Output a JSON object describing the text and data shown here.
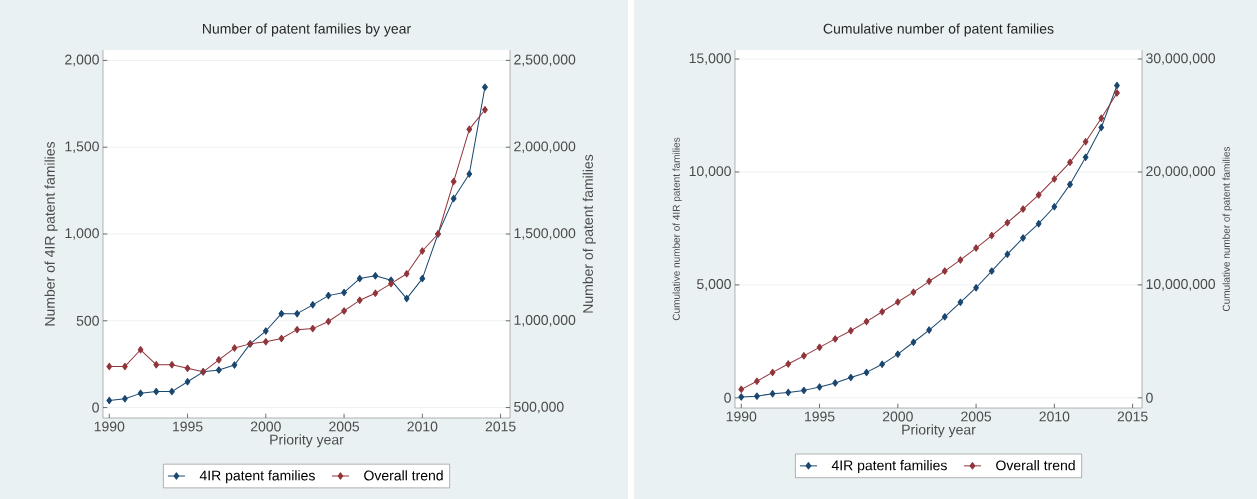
{
  "chart_data": [
    {
      "type": "line",
      "title": "Number of patent families by year",
      "xlabel": "Priority year",
      "ylabel": "Number of 4IR patent families",
      "y2label": "Number of patent families",
      "x": [
        1990,
        1991,
        1992,
        1993,
        1994,
        1995,
        1996,
        1997,
        1998,
        1999,
        2000,
        2001,
        2002,
        2003,
        2004,
        2005,
        2006,
        2007,
        2008,
        2009,
        2010,
        2011,
        2012,
        2013,
        2014
      ],
      "series": [
        {
          "name": "4IR patent families",
          "color": "#1a476f",
          "values": [
            41,
            51,
            82,
            92,
            92,
            149,
            206,
            216,
            245,
            367,
            441,
            541,
            541,
            592,
            645,
            663,
            743,
            759,
            734,
            628,
            743,
            1000,
            1204,
            1346,
            1846
          ]
        },
        {
          "name": "Overall trend",
          "color": "#90353b",
          "axis": "y2",
          "values": [
            737000,
            737000,
            833000,
            747000,
            747000,
            726000,
            706000,
            775000,
            843000,
            867000,
            879000,
            898000,
            949000,
            955000,
            996000,
            1057000,
            1118000,
            1159000,
            1214000,
            1271000,
            1402000,
            1500000,
            1802000,
            2103000,
            2216000
          ]
        }
      ],
      "xlim": [
        1989.6,
        2015.6
      ],
      "ylim": [
        -60,
        2060
      ],
      "y2lim": [
        440000,
        2560000
      ],
      "xticks": [
        1990,
        1995,
        2000,
        2005,
        2010,
        2015
      ],
      "yticks": [
        0,
        500,
        {
          "value": 1000,
          "label": "1,000"
        },
        {
          "value": 1500,
          "label": "1,500"
        },
        {
          "value": 2000,
          "label": "2,000"
        }
      ],
      "y2ticks": [
        {
          "value": 500000,
          "label": "500,000"
        },
        {
          "value": 1000000,
          "label": "1,000,000"
        },
        {
          "value": 1500000,
          "label": "1,500,000"
        },
        {
          "value": 2000000,
          "label": "2,000,000"
        },
        {
          "value": 2500000,
          "label": "2,500,000"
        }
      ],
      "grid": "y",
      "legend": "bottom",
      "marker": "diamond"
    },
    {
      "type": "line",
      "title": "Cumulative number of patent families",
      "xlabel": "Priority year",
      "ylabel": "Cumulative number of 4IR patent families",
      "y2label": "Cumulative number of patent families",
      "x": [
        1990,
        1991,
        1992,
        1993,
        1994,
        1995,
        1996,
        1997,
        1998,
        1999,
        2000,
        2001,
        2002,
        2003,
        2004,
        2005,
        2006,
        2007,
        2008,
        2009,
        2010,
        2011,
        2012,
        2013,
        2014
      ],
      "series": [
        {
          "name": "4IR patent families",
          "color": "#1a476f",
          "values": [
            41,
            75,
            180,
            240,
            330,
            480,
            660,
            900,
            1125,
            1485,
            1935,
            2460,
            3000,
            3585,
            4230,
            4875,
            5610,
            6360,
            7080,
            7710,
            8460,
            9450,
            10650,
            11970,
            13830
          ]
        },
        {
          "name": "Overall trend",
          "color": "#90353b",
          "axis": "y2",
          "values": [
            750000,
            1470000,
            2250000,
            3000000,
            3720000,
            4470000,
            5220000,
            5940000,
            6750000,
            7620000,
            8490000,
            9360000,
            10320000,
            11220000,
            12210000,
            13260000,
            14370000,
            15510000,
            16710000,
            17970000,
            19380000,
            20850000,
            22680000,
            24750000,
            27000000
          ]
        }
      ],
      "xlim": [
        1989.6,
        2015.6
      ],
      "ylim": [
        -450,
        15400
      ],
      "y2lim": [
        -900000,
        30800000
      ],
      "xticks": [
        1990,
        1995,
        2000,
        2005,
        2010,
        2015
      ],
      "yticks": [
        0,
        {
          "value": 5000,
          "label": "5,000"
        },
        {
          "value": 10000,
          "label": "10,000"
        },
        {
          "value": 15000,
          "label": "15,000"
        }
      ],
      "y2ticks": [
        0,
        {
          "value": 10000000,
          "label": "10,000,000"
        },
        {
          "value": 20000000,
          "label": "20,000,000"
        },
        {
          "value": 30000000,
          "label": "30,000,000"
        }
      ],
      "grid": "y",
      "legend": "bottom",
      "marker": "diamond"
    }
  ]
}
